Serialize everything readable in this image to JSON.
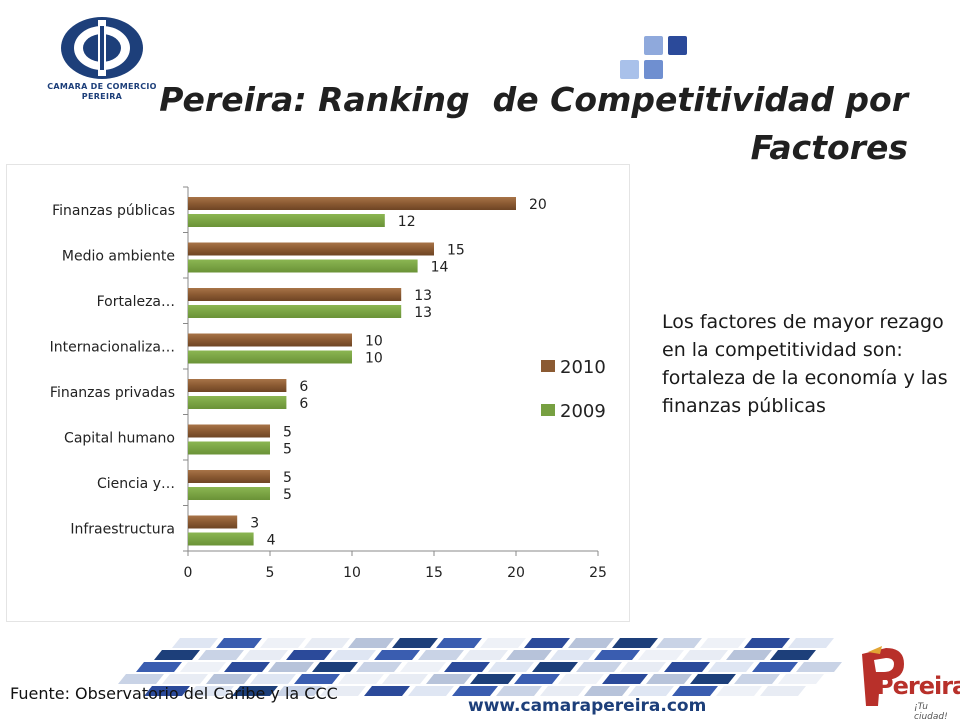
{
  "header": {
    "org_logo_text": "CAMARA DE COMERCIO PEREIRA",
    "title_line1": "Pereira: Ranking  de Competitividad por",
    "title_line2": "Factores"
  },
  "side_note": "Los factores de mayor rezago en la competitividad son: fortaleza de la economía y las finanzas públicas",
  "footer": {
    "source": "Fuente: Observatorio del Caribe y la CCC",
    "url": "www.camarapereira.com",
    "city_logo_text": "Pereira",
    "city_logo_tagline": "¡Tu ciudad!"
  },
  "colors": {
    "series_2010": "#8b5a32",
    "series_2009": "#77a041",
    "brand_blue": "#1d3f7a"
  },
  "chart_data": {
    "type": "bar",
    "orientation": "horizontal",
    "categories": [
      "Finanzas públicas",
      "Medio ambiente",
      "Fortaleza…",
      "Internacionaliza…",
      "Finanzas privadas",
      "Capital humano",
      "Ciencia y…",
      "Infraestructura"
    ],
    "series": [
      {
        "name": "2010",
        "values": [
          20,
          15,
          13,
          10,
          6,
          5,
          5,
          3
        ]
      },
      {
        "name": "2009",
        "values": [
          12,
          14,
          13,
          10,
          6,
          5,
          5,
          4
        ]
      }
    ],
    "xlim": [
      0,
      25
    ],
    "xticks": [
      "0",
      "5",
      "10",
      "15",
      "20",
      "25"
    ],
    "data_labels": true,
    "legend_position": "right",
    "grid": false
  }
}
